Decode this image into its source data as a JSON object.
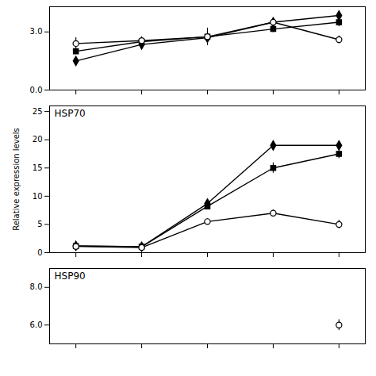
{
  "chart_data": [
    {
      "type": "line",
      "x": [
        0,
        1,
        2,
        3,
        4
      ],
      "xlim": [
        -0.4,
        4.4
      ],
      "xticks": [
        0,
        1,
        2,
        3,
        4
      ],
      "ylim": [
        0,
        4.3
      ],
      "yticks": [
        0,
        3
      ],
      "tick_labels": "y",
      "series": [
        {
          "marker": "diamond",
          "color": "#000000",
          "values": [
            1.5,
            2.35,
            2.7,
            3.5,
            3.85
          ],
          "errors": [
            0.18,
            0.12,
            0.22,
            0.22,
            0.15
          ]
        },
        {
          "marker": "square",
          "color": "#000000",
          "values": [
            2.0,
            2.5,
            2.75,
            3.15,
            3.5
          ],
          "errors": [
            0.12,
            0.15,
            0.28,
            0.18,
            0.22
          ]
        },
        {
          "marker": "circle",
          "color": "#000000",
          "values": [
            2.4,
            2.55,
            2.75,
            3.5,
            2.6
          ],
          "errors": [
            0.3,
            0.2,
            0.45,
            0.22,
            0.2
          ]
        }
      ]
    },
    {
      "type": "line",
      "annotations": [
        "HSP70"
      ],
      "y_label": "Relative expression levels",
      "x": [
        0,
        1,
        2,
        3,
        4
      ],
      "xlim": [
        -0.4,
        4.4
      ],
      "xticks": [
        0,
        1,
        2,
        3,
        4
      ],
      "ylim": [
        0,
        26
      ],
      "yticks": [
        0,
        5,
        10,
        15,
        20,
        25
      ],
      "tick_labels": "y",
      "series": [
        {
          "marker": "diamond",
          "color": "#000000",
          "values": [
            1.2,
            1.05,
            8.7,
            19.0,
            19.0
          ],
          "errors": [
            0.15,
            0.12,
            0.65,
            0.75,
            0.55
          ]
        },
        {
          "marker": "square",
          "color": "#000000",
          "values": [
            1.15,
            1.05,
            8.2,
            15.0,
            17.5
          ],
          "errors": [
            0.2,
            0.15,
            0.55,
            0.9,
            0.85
          ]
        },
        {
          "marker": "circle",
          "color": "#000000",
          "values": [
            1.1,
            0.9,
            5.5,
            7.0,
            5.0
          ],
          "errors": [
            0.22,
            0.12,
            0.5,
            0.55,
            0.75
          ]
        }
      ]
    },
    {
      "type": "scatter",
      "annotations": [
        "HSP90"
      ],
      "x": [
        4
      ],
      "xlim": [
        -0.4,
        4.4
      ],
      "xticks": [
        0,
        1,
        2,
        3,
        4
      ],
      "ylim": [
        5.0,
        9.0
      ],
      "yticks": [
        6,
        8
      ],
      "tick_labels": "y",
      "series": [
        {
          "marker": "circle",
          "color": "#000000",
          "values": [
            6.0
          ],
          "errors": [
            0.28
          ]
        }
      ]
    }
  ]
}
